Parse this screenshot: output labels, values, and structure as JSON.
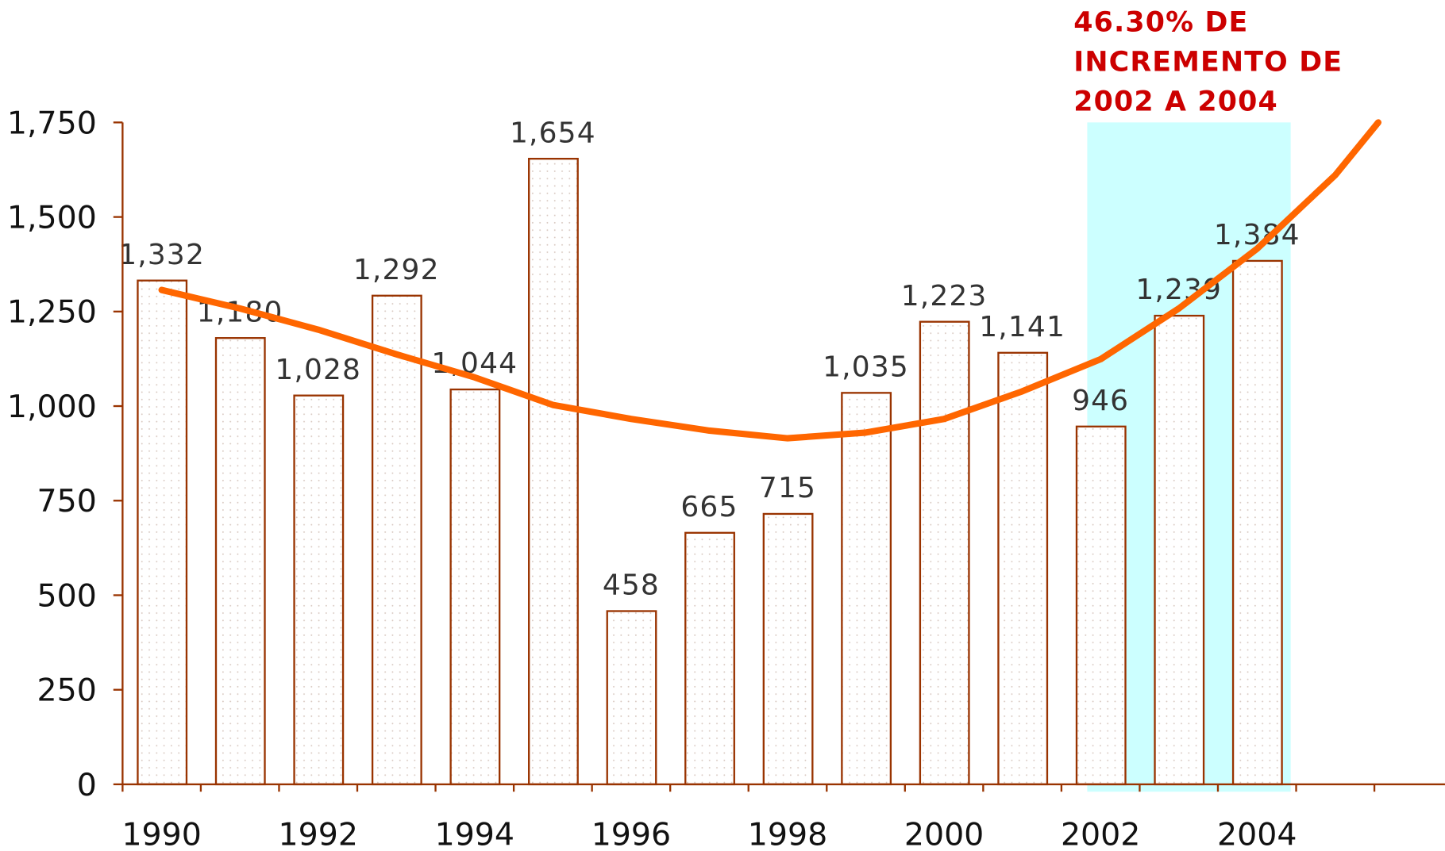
{
  "chart_data": {
    "type": "bar",
    "categories": [
      "1990",
      null,
      "1992",
      null,
      "1994",
      null,
      "1996",
      null,
      "1998",
      null,
      "2000",
      null,
      "2002",
      null,
      "2004"
    ],
    "values": [
      1332,
      1180,
      1028,
      1292,
      1044,
      1654,
      458,
      665,
      715,
      1035,
      1223,
      1141,
      946,
      1239,
      1384
    ],
    "value_labels": [
      "1,332",
      "1,180",
      "1,028",
      "1,292",
      "1,044",
      "1,654",
      "458",
      "665",
      "715",
      "1,035",
      "1,223",
      "1,141",
      "946",
      "1,239",
      "1,384"
    ],
    "color": "#993300",
    "ylim": [
      0,
      1750
    ],
    "yticks": [
      0,
      250,
      500,
      750,
      {
        "value": 1000,
        "label": "1,000"
      },
      {
        "value": 1250,
        "label": "1,250"
      },
      {
        "value": 1500,
        "label": "1,500"
      },
      {
        "value": 1750,
        "label": "1,750"
      }
    ],
    "trend": {
      "color": "#ff6600",
      "x": [
        1990,
        1991,
        1992,
        1993,
        1994,
        1995,
        1996,
        1997,
        1998,
        1999,
        2000,
        2001,
        2002,
        2003,
        2004,
        2005,
        2005.55
      ],
      "values": [
        1307,
        1258,
        1202,
        1137,
        1076,
        1003,
        966,
        935,
        915,
        930,
        966,
        1039,
        1124,
        1258,
        1416,
        1611,
        1750
      ]
    },
    "highlight": {
      "range": [
        2002,
        2004
      ],
      "color": "#ccffff"
    },
    "annotation": {
      "lines": [
        "46.30% DE",
        "INCREMENTO DE",
        "2002 A 2004"
      ],
      "color": "#cc0000"
    }
  }
}
